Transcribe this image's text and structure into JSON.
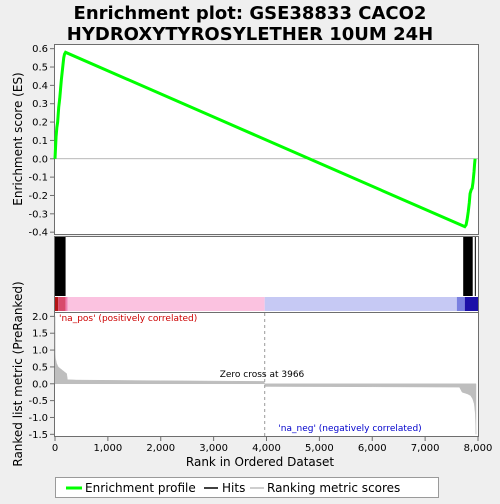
{
  "chart_data": {
    "type": "line",
    "title": "Enrichment plot: GSE38833 CACO2\nHYDROXYTYROSYLETHER 10UM 24H",
    "es_panel": {
      "ylabel": "Enrichment score (ES)",
      "yticks": [
        "0.6",
        "0.5",
        "0.4",
        "0.3",
        "0.2",
        "0.1",
        "0.0",
        "-0.1",
        "-0.2",
        "-0.3",
        "-0.4"
      ],
      "ylim": [
        -0.41,
        0.62
      ],
      "line_color": "#00ff00",
      "profile": [
        [
          0,
          0.0
        ],
        [
          10,
          0.06
        ],
        [
          20,
          0.12
        ],
        [
          35,
          0.17
        ],
        [
          50,
          0.2
        ],
        [
          70,
          0.28
        ],
        [
          90,
          0.33
        ],
        [
          105,
          0.38
        ],
        [
          120,
          0.43
        ],
        [
          135,
          0.47
        ],
        [
          150,
          0.51
        ],
        [
          165,
          0.55
        ],
        [
          180,
          0.57
        ],
        [
          200,
          0.58
        ],
        [
          7750,
          -0.37
        ],
        [
          7775,
          -0.36
        ],
        [
          7795,
          -0.33
        ],
        [
          7815,
          -0.29
        ],
        [
          7835,
          -0.24
        ],
        [
          7850,
          -0.19
        ],
        [
          7870,
          -0.17
        ],
        [
          7890,
          -0.16
        ],
        [
          7905,
          -0.13
        ],
        [
          7915,
          -0.1
        ],
        [
          7925,
          -0.07
        ],
        [
          7935,
          -0.03
        ],
        [
          7945,
          0.0
        ]
      ]
    },
    "hits_panel": {
      "hit_blocks": [
        [
          0,
          200
        ],
        [
          7720,
          7900
        ],
        [
          7940,
          7955
        ]
      ]
    },
    "rank_panel": {
      "ylabel": "Ranked list metric (PreRanked)",
      "xlabel": "Rank in Ordered Dataset",
      "yticks": [
        "2.0",
        "1.5",
        "1.0",
        "0.5",
        "0.0",
        "-0.5",
        "-1.0",
        "-1.5"
      ],
      "ylim": [
        -1.55,
        2.1
      ],
      "xlim": [
        0,
        8000
      ],
      "xticks": [
        "0",
        "1,000",
        "2,000",
        "3,000",
        "4,000",
        "5,000",
        "6,000",
        "7,000",
        "8,000"
      ],
      "zero_cross_label": "Zero cross at 3966",
      "zero_cross_rank": 3966,
      "pos_label": "'na_pos' (positively correlated)",
      "neg_label": "'na_neg' (negatively correlated)",
      "pos_label_color": "#cc0000",
      "neg_label_color": "#0000cc",
      "bar_color": "#bebebe",
      "metric": [
        [
          0,
          2.0
        ],
        [
          3,
          0.9
        ],
        [
          10,
          0.75
        ],
        [
          30,
          0.6
        ],
        [
          60,
          0.5
        ],
        [
          100,
          0.45
        ],
        [
          140,
          0.4
        ],
        [
          180,
          0.35
        ],
        [
          220,
          0.3
        ],
        [
          235,
          0.12
        ],
        [
          400,
          0.11
        ],
        [
          2000,
          0.09
        ],
        [
          3950,
          0.07
        ],
        [
          3966,
          0.0
        ],
        [
          3970,
          -0.08
        ],
        [
          6000,
          -0.09
        ],
        [
          7650,
          -0.1
        ],
        [
          7700,
          -0.25
        ],
        [
          7800,
          -0.3
        ],
        [
          7860,
          -0.35
        ],
        [
          7900,
          -0.45
        ],
        [
          7930,
          -0.6
        ],
        [
          7950,
          -0.9
        ],
        [
          7962,
          -1.5
        ]
      ]
    },
    "legend": {
      "items": [
        "Enrichment profile",
        "Hits",
        "Ranking metric scores"
      ]
    }
  }
}
